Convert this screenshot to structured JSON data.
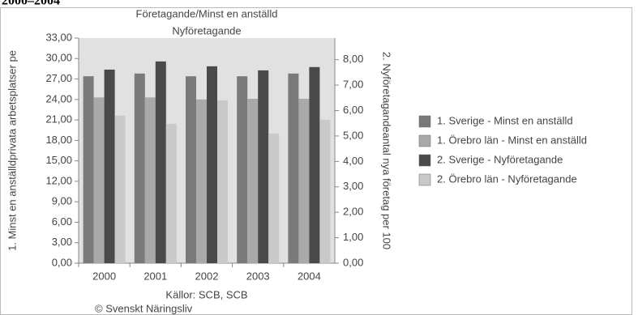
{
  "heading": "2000–2004",
  "chart_data": {
    "type": "bar",
    "title": "Företagande/Minst en anställd",
    "subtitle": "Nyföretagande",
    "y_label": "1. Minst en anställdprivata arbetsplatser pe",
    "y2_label": "2. Nyföretagandeantal nya företag per 100",
    "source": "Källor: SCB, SCB",
    "credit": "© Svenskt Näringsliv",
    "categories": [
      "2000",
      "2001",
      "2002",
      "2003",
      "2004"
    ],
    "series": [
      {
        "name": "1. Sverige - Minst en anställd",
        "color": "#7a7a7a",
        "values": [
          27.4,
          27.8,
          27.4,
          27.4,
          27.8
        ]
      },
      {
        "name": "1. Örebro län - Minst en anställd",
        "color": "#a9a9a9",
        "values": [
          24.3,
          24.3,
          24.0,
          24.1,
          24.1
        ]
      },
      {
        "name": "2. Sverige - Nyföretagande",
        "color": "#4a4a4a",
        "axis": "y2",
        "values": [
          7.61,
          7.93,
          7.74,
          7.58,
          7.71
        ]
      },
      {
        "name": "2. Örebro län - Nyföretagande",
        "color": "#c9c9c9",
        "axis": "y2",
        "values": [
          5.8,
          5.48,
          6.4,
          5.1,
          5.64
        ]
      }
    ],
    "ylim": [
      0,
      33
    ],
    "yticks": [
      {
        "value": 0,
        "label": "0,00"
      },
      {
        "value": 3,
        "label": "3,00"
      },
      {
        "value": 6,
        "label": "6,00"
      },
      {
        "value": 9,
        "label": "9,00"
      },
      {
        "value": 12,
        "label": "12,00"
      },
      {
        "value": 15,
        "label": "15,00"
      },
      {
        "value": 18,
        "label": "18,00"
      },
      {
        "value": 21,
        "label": "21,00"
      },
      {
        "value": 24,
        "label": "24,00"
      },
      {
        "value": 27,
        "label": "27,00"
      },
      {
        "value": 30,
        "label": "30,00"
      },
      {
        "value": 33,
        "label": "33,00"
      }
    ],
    "y2lim": [
      0,
      8.85
    ],
    "y2ticks": [
      {
        "value": 0,
        "label": "0,00"
      },
      {
        "value": 1,
        "label": "1,00"
      },
      {
        "value": 2,
        "label": "2,00"
      },
      {
        "value": 3,
        "label": "3,00"
      },
      {
        "value": 4,
        "label": "4,00"
      },
      {
        "value": 5,
        "label": "5,00"
      },
      {
        "value": 6,
        "label": "6,00"
      },
      {
        "value": 7,
        "label": "7,00"
      },
      {
        "value": 8,
        "label": "8,00"
      }
    ],
    "legend": "right"
  }
}
